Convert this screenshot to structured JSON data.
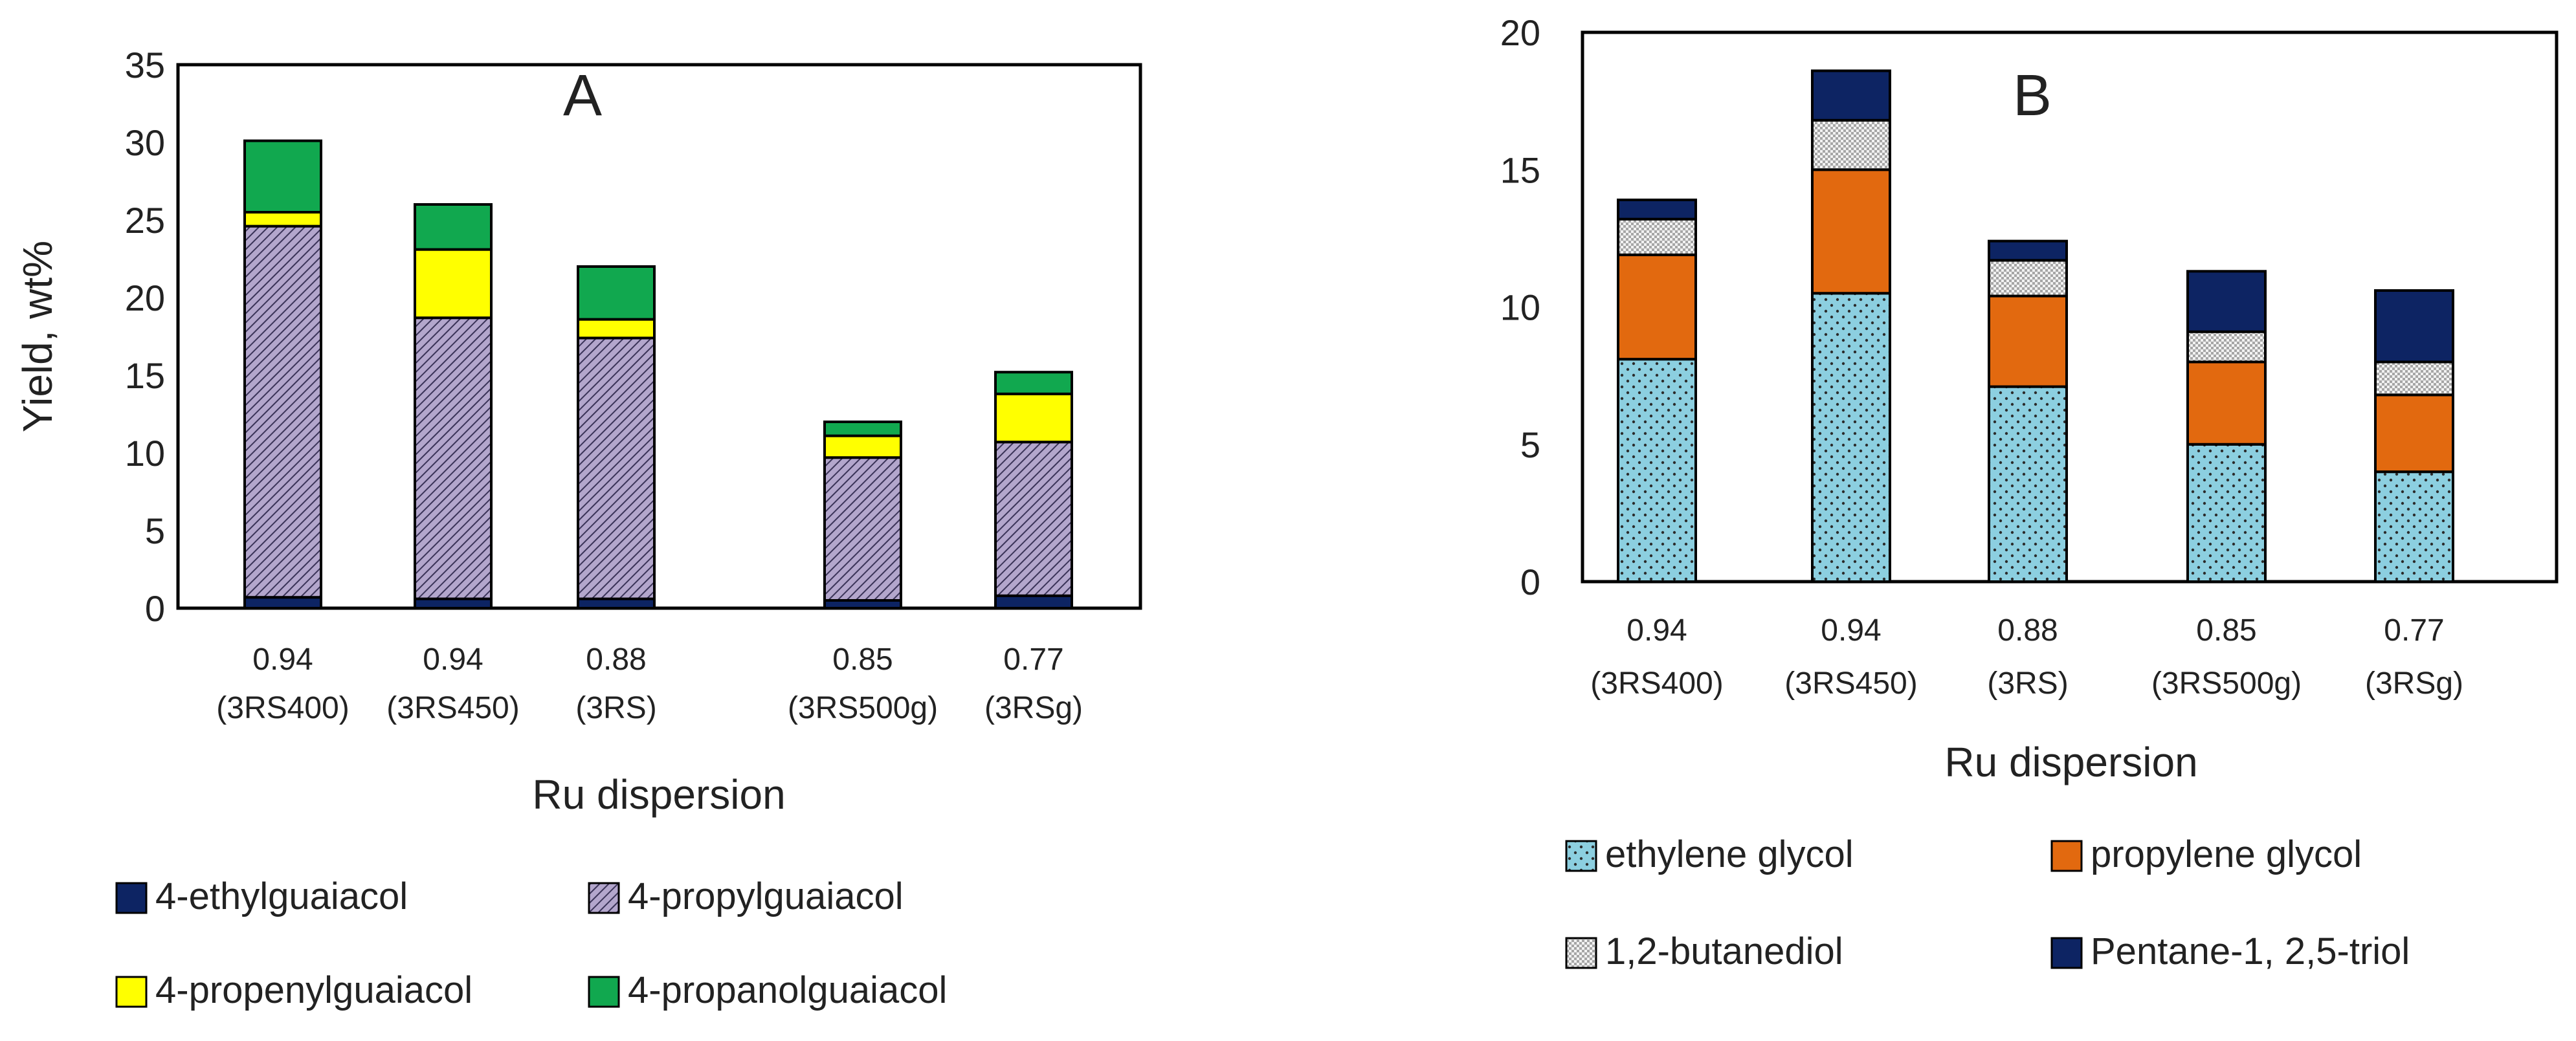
{
  "chart_data": [
    {
      "panel": "A",
      "type": "bar",
      "stacked": true,
      "title": "A",
      "xlabel": "Ru dispersion",
      "ylabel": "Yield, wt%",
      "ylim": [
        0,
        35
      ],
      "yticks": [
        "0",
        "5",
        "10",
        "15",
        "20",
        "25",
        "30",
        "35"
      ],
      "categories": [
        [
          "0.94",
          "(3RS400)"
        ],
        [
          "0.94",
          "(3RS450)"
        ],
        [
          "0.88",
          "(3RS)"
        ],
        [
          "0.85",
          "(3RS500g)"
        ],
        [
          "0.77",
          "(3RSg)"
        ]
      ],
      "series": [
        {
          "name": "4-ethylguaiacol",
          "color": "#0d2463",
          "pattern": "solid",
          "values": [
            0.7,
            0.6,
            0.6,
            0.5,
            0.8
          ]
        },
        {
          "name": "4-propylguaiacol",
          "color": "#b3a6cc",
          "pattern": "diagonal",
          "values": [
            23.9,
            18.1,
            16.8,
            9.2,
            9.9
          ]
        },
        {
          "name": "4-propenylguaiacol",
          "color": "#ffff00",
          "pattern": "solid",
          "values": [
            0.9,
            4.4,
            1.2,
            1.4,
            3.1
          ]
        },
        {
          "name": "4-propanolguaiacol",
          "color": "#11a84f",
          "pattern": "solid",
          "values": [
            4.6,
            2.9,
            3.4,
            0.9,
            1.4
          ]
        }
      ],
      "legend_position": "bottom"
    },
    {
      "panel": "B",
      "type": "bar",
      "stacked": true,
      "title": "B",
      "xlabel": "Ru dispersion",
      "ylabel": "",
      "ylim": [
        0,
        20
      ],
      "yticks": [
        "0",
        "5",
        "10",
        "15",
        "20"
      ],
      "categories": [
        [
          "0.94",
          "(3RS400)"
        ],
        [
          "0.94",
          "(3RS450)"
        ],
        [
          "0.88",
          "(3RS)"
        ],
        [
          "0.85",
          "(3RS500g)"
        ],
        [
          "0.77",
          "(3RSg)"
        ]
      ],
      "series": [
        {
          "name": "ethylene glycol",
          "color": "#8ccfe0",
          "pattern": "dots",
          "values": [
            8.1,
            10.5,
            7.1,
            5.0,
            4.0
          ]
        },
        {
          "name": "propylene glycol",
          "color": "#e2690f",
          "pattern": "solid",
          "values": [
            3.8,
            4.5,
            3.3,
            3.0,
            2.8
          ]
        },
        {
          "name": "1,2-butanediol",
          "color": "#e6e6e6",
          "pattern": "checker",
          "values": [
            1.3,
            1.8,
            1.3,
            1.1,
            1.2
          ]
        },
        {
          "name": "Pentane-1, 2,5-triol",
          "color": "#0d2463",
          "pattern": "solid",
          "values": [
            0.7,
            1.8,
            0.7,
            2.2,
            2.6
          ]
        }
      ],
      "legend_position": "bottom"
    }
  ]
}
